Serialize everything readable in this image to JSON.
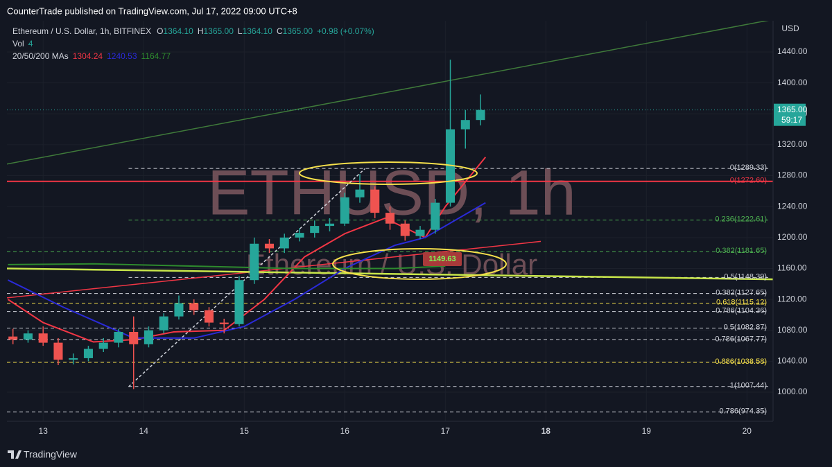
{
  "chart_data": {
    "type": "candlestick",
    "title": "CounterTrade published on TradingView.com, Jul 17, 2022 09:00 UTC+8",
    "symbol": "Ethereum / U.S. Dollar, 1h, BITFINEX",
    "ohlc": [
      {
        "key": "O",
        "text": "1364.10"
      },
      {
        "key": "H",
        "text": "1365.00"
      },
      {
        "key": "L",
        "text": "1364.10"
      },
      {
        "key": "C",
        "text": "1365.00"
      }
    ],
    "change": "+0.98 (+0.07%)",
    "volume_label": "Vol",
    "volume_text": "4",
    "ma_label": "20/50/200 MAs",
    "currency": "USD",
    "watermark": "ETHUSD, 1h",
    "watermark_sub": "Ethereum / U.S. Dollar",
    "footer": "TradingView",
    "xlim": [
      12.64,
      20.26
    ],
    "xticks": [
      13,
      14,
      15,
      16,
      17,
      18,
      19,
      20
    ],
    "ylim": [
      962.4,
      1480.3
    ],
    "yticks": [
      {
        "value": 1000,
        "label": "1000.00"
      },
      {
        "value": 1040,
        "label": "1040.00"
      },
      {
        "value": 1080,
        "label": "1080.00"
      },
      {
        "value": 1120,
        "label": "1120.00"
      },
      {
        "value": 1160,
        "label": "1160.00"
      },
      {
        "value": 1200,
        "label": "1200.00"
      },
      {
        "value": 1240,
        "label": "1240.00"
      },
      {
        "value": 1280,
        "label": "1280.00"
      },
      {
        "value": 1320,
        "label": "1320.00"
      },
      {
        "value": 1360,
        "label": "1360.00"
      },
      {
        "value": 1400,
        "label": "1400.00"
      },
      {
        "value": 1440,
        "label": "1440.00"
      }
    ],
    "grid": true,
    "up_color": "#26a69a",
    "down_color": "#ef5350",
    "candles": {
      "x": [
        12.7,
        12.85,
        13.0,
        13.15,
        13.3,
        13.45,
        13.6,
        13.75,
        13.9,
        14.05,
        14.2,
        14.35,
        14.5,
        14.65,
        14.8,
        14.95,
        15.1,
        15.25,
        15.4,
        15.55,
        15.7,
        15.85,
        16.0,
        16.15,
        16.3,
        16.45,
        16.6,
        16.75,
        16.9,
        17.05,
        17.2,
        17.35
      ],
      "open": [
        1072,
        1068,
        1076,
        1064,
        1042,
        1044,
        1056,
        1064,
        1078,
        1062,
        1080,
        1098,
        1115,
        1106,
        1090,
        1088,
        1145,
        1192,
        1186,
        1200,
        1206,
        1215,
        1218,
        1252,
        1262,
        1232,
        1218,
        1202,
        1210,
        1245,
        1340,
        1352
      ],
      "high": [
        1082,
        1080,
        1085,
        1070,
        1050,
        1060,
        1070,
        1082,
        1098,
        1085,
        1102,
        1125,
        1120,
        1110,
        1095,
        1150,
        1200,
        1198,
        1205,
        1212,
        1222,
        1225,
        1258,
        1282,
        1266,
        1240,
        1222,
        1215,
        1250,
        1430,
        1365,
        1385
      ],
      "low": [
        1062,
        1064,
        1060,
        1035,
        1036,
        1040,
        1052,
        1058,
        1004,
        1058,
        1076,
        1094,
        1100,
        1085,
        1076,
        1085,
        1140,
        1180,
        1180,
        1195,
        1200,
        1208,
        1215,
        1245,
        1225,
        1210,
        1196,
        1198,
        1205,
        1240,
        1315,
        1345
      ],
      "close": [
        1068,
        1076,
        1064,
        1042,
        1044,
        1056,
        1064,
        1078,
        1062,
        1080,
        1098,
        1115,
        1106,
        1090,
        1088,
        1145,
        1192,
        1186,
        1200,
        1206,
        1215,
        1218,
        1252,
        1262,
        1232,
        1218,
        1202,
        1210,
        1245,
        1340,
        1352,
        1365
      ]
    },
    "ma": [
      {
        "color": "#f23645",
        "value_label": "1304.24",
        "x": [
          12.65,
          13.0,
          13.5,
          13.9,
          14.3,
          14.8,
          15.2,
          15.6,
          16.0,
          16.4,
          16.8,
          17.0,
          17.4
        ],
        "values": [
          1120,
          1090,
          1065,
          1068,
          1078,
          1080,
          1120,
          1175,
          1205,
          1225,
          1200,
          1240,
          1304
        ]
      },
      {
        "color": "#2a2ad8",
        "value_label": "1240.53",
        "x": [
          12.65,
          13.2,
          13.9,
          14.5,
          15.0,
          15.5,
          16.0,
          16.5,
          16.8,
          17.0,
          17.4
        ],
        "values": [
          1145,
          1110,
          1070,
          1070,
          1085,
          1120,
          1160,
          1190,
          1200,
          1215,
          1245
        ]
      },
      {
        "color": "#2e8b2e",
        "value_label": "1164.77",
        "x": [
          12.65,
          13.5,
          14.5,
          15.5,
          16.5,
          17.0
        ],
        "values": [
          1165,
          1166,
          1163,
          1160,
          1160,
          1163
        ]
      }
    ],
    "trendlines": [
      {
        "color": "#3f7a3a",
        "x": [
          12.64,
          20.26
        ],
        "values": [
          1295,
          1482
        ]
      },
      {
        "color": "#f23645",
        "x": [
          12.64,
          17.95
        ],
        "values": [
          1122,
          1195
        ]
      },
      {
        "color": "#c8e64a",
        "x": [
          12.64,
          20.26
        ],
        "values": [
          1160,
          1146
        ]
      },
      {
        "color": "#d1d4dc",
        "x": [
          13.85,
          16.2
        ],
        "values": [
          1007,
          1289
        ]
      }
    ],
    "levels": [
      {
        "value": 1289.33,
        "label": "0(1289.33)",
        "color": "#d1d4dc",
        "x0": 13.85
      },
      {
        "value": 1272.6,
        "label": "0(1272.60)",
        "color": "#f23645",
        "solid": true
      },
      {
        "value": 1222.61,
        "label": "0.236(1222.61)",
        "color": "#4caf50",
        "x0": 13.85
      },
      {
        "value": 1181.65,
        "label": "0.382(1181.65)",
        "color": "#4caf50"
      },
      {
        "value": 1148.39,
        "label": "0.5(1148.39)",
        "color": "#d1d4dc",
        "x0": 13.85
      },
      {
        "value": 1127.65,
        "label": "0.382(1127.65)",
        "color": "#d1d4dc"
      },
      {
        "value": 1115.12,
        "label": "0.618(1115.12)",
        "color": "#f7e14b"
      },
      {
        "value": 1104.36,
        "label": "0.786(1104.36)",
        "color": "#d1d4dc"
      },
      {
        "value": 1082.87,
        "label": "0.5(1082.87)",
        "color": "#d1d4dc"
      },
      {
        "value": 1067.77,
        "label": "0.786(1067.77)",
        "color": "#d1d4dc"
      },
      {
        "value": 1038.58,
        "label": "0.886(1038.58)",
        "color": "#f7e14b"
      },
      {
        "value": 1007.44,
        "label": "1(1007.44)",
        "color": "#d1d4dc",
        "x0": 13.85
      },
      {
        "value": 974.35,
        "label": "0.786(974.35)",
        "color": "#d1d4dc"
      }
    ],
    "annotation": 1149.63,
    "last_price": {
      "value": 1365,
      "label": "1365.00"
    },
    "countdown": "59:17"
  }
}
